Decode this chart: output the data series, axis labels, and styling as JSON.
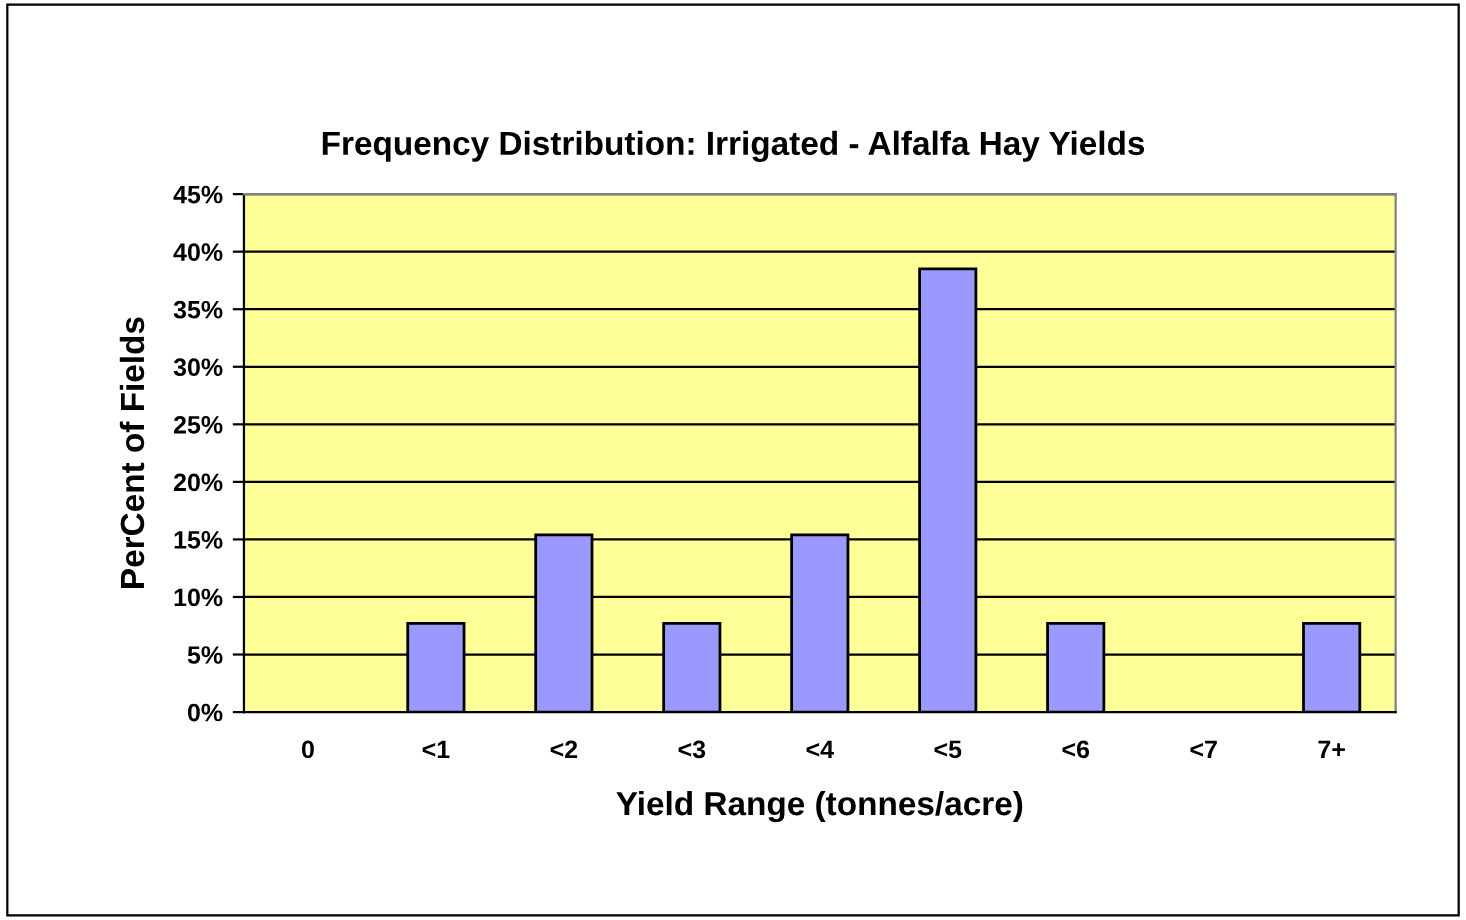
{
  "chart_data": {
    "type": "bar",
    "title": "Frequency Distribution: Irrigated - Alfalfa Hay Yields",
    "xlabel": "Yield Range (tonnes/acre)",
    "ylabel": "PerCent of Fields",
    "categories": [
      "0",
      "<1",
      "<2",
      "<3",
      "<4",
      "<5",
      "<6",
      "<7",
      "7+"
    ],
    "values": [
      0,
      7.7,
      15.4,
      7.7,
      15.4,
      38.5,
      7.7,
      0,
      7.7
    ],
    "color": "#9999ff",
    "ylim": [
      0,
      45
    ],
    "yticks": [
      {
        "value": 0,
        "label": "0%"
      },
      {
        "value": 5,
        "label": "5%"
      },
      {
        "value": 10,
        "label": "10%"
      },
      {
        "value": 15,
        "label": "15%"
      },
      {
        "value": 20,
        "label": "20%"
      },
      {
        "value": 25,
        "label": "25%"
      },
      {
        "value": 30,
        "label": "30%"
      },
      {
        "value": 35,
        "label": "35%"
      },
      {
        "value": 40,
        "label": "40%"
      },
      {
        "value": 45,
        "label": "45%"
      }
    ],
    "grid": "y",
    "legend": false
  }
}
